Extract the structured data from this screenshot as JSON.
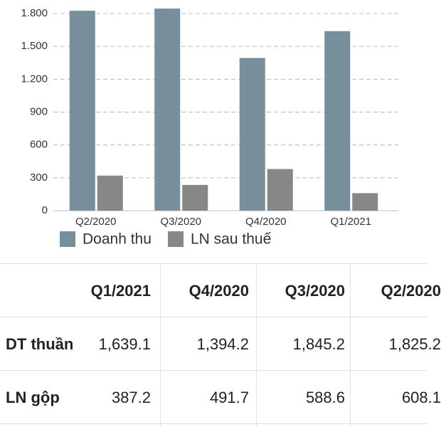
{
  "chart_data": {
    "type": "bar",
    "categories": [
      "Q2/2020",
      "Q3/2020",
      "Q4/2020",
      "Q1/2021"
    ],
    "series": [
      {
        "name": "Doanh thu",
        "color": "#778f9b",
        "values": [
          1825,
          1845,
          1394,
          1639
        ]
      },
      {
        "name": "LN sau thuế",
        "color": "#878787",
        "values": [
          320,
          235,
          380,
          160
        ]
      }
    ],
    "ylim": [
      0,
      1900
    ],
    "yticks": [
      0,
      300,
      600,
      900,
      {
        "value": 1200,
        "label": "1.200"
      },
      {
        "value": 1500,
        "label": "1.500"
      },
      {
        "value": 1800,
        "label": "1.800"
      }
    ],
    "grid": true,
    "legend": "bottom-left"
  },
  "table": {
    "header": [
      "Q1/2021",
      "Q4/2020",
      "Q3/2020",
      "Q2/2020"
    ],
    "rows": [
      [
        "DT thuần",
        "1,639.1",
        "1,394.2",
        "1,845.2",
        "1,825.2"
      ],
      [
        "LN gộp",
        "387.2",
        "491.7",
        "588.6",
        "608.1"
      ]
    ]
  }
}
